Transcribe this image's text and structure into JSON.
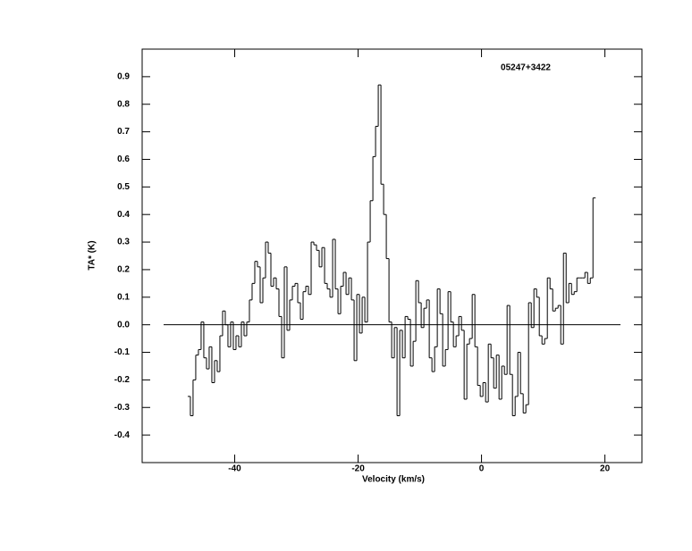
{
  "chart_data": {
    "type": "step",
    "annotation": "05247+3422",
    "xlabel": "Velocity (km/s)",
    "ylabel": "TA* (K)",
    "color": "#000000",
    "xlim": [
      -55,
      26
    ],
    "ylim": [
      -0.5,
      1.0
    ],
    "xticks": [
      -40,
      -20,
      0,
      20
    ],
    "yticks": [
      -0.4,
      -0.3,
      -0.2,
      -0.1,
      {
        "value": 0,
        "label": "0.0"
      },
      0.1,
      0.2,
      0.3,
      0.4,
      0.5,
      0.6,
      0.7,
      0.8,
      0.9
    ],
    "zero_line": true,
    "x": [
      -47.4,
      -46.97,
      -46.53,
      -46.1,
      -45.66,
      -45.23,
      -44.79,
      -44.36,
      -43.92,
      -43.49,
      -43.05,
      -42.62,
      -42.18,
      -41.75,
      -41.31,
      -40.88,
      -40.44,
      -40.01,
      -39.57,
      -39.14,
      -38.7,
      -38.27,
      -37.83,
      -37.4,
      -36.96,
      -36.53,
      -36.09,
      -35.66,
      -35.22,
      -34.79,
      -34.35,
      -33.92,
      -33.48,
      -33.05,
      -32.61,
      -32.18,
      -31.74,
      -31.31,
      -30.87,
      -30.44,
      -30.0,
      -29.57,
      -29.13,
      -28.7,
      -28.26,
      -27.83,
      -27.39,
      -26.96,
      -26.52,
      -26.09,
      -25.65,
      -25.22,
      -24.78,
      -24.35,
      -23.91,
      -23.48,
      -23.04,
      -22.61,
      -22.17,
      -21.74,
      -21.3,
      -20.87,
      -20.43,
      -20.0,
      -19.56,
      -19.13,
      -18.69,
      -18.26,
      -17.82,
      -17.39,
      -16.95,
      -16.52,
      -16.08,
      -15.65,
      -15.21,
      -14.78,
      -14.34,
      -13.91,
      -13.47,
      -13.04,
      -12.6,
      -12.17,
      -11.73,
      -11.3,
      -10.86,
      -10.43,
      -9.99,
      -9.56,
      -9.12,
      -8.69,
      -8.25,
      -7.82,
      -7.38,
      -6.95,
      -6.51,
      -6.08,
      -5.64,
      -5.21,
      -4.77,
      -4.34,
      -3.9,
      -3.47,
      -3.03,
      -2.6,
      -2.16,
      -1.73,
      -1.29,
      -0.86,
      -0.42,
      0.01,
      0.45,
      0.88,
      1.32,
      1.75,
      2.19,
      2.62,
      3.06,
      3.49,
      3.93,
      4.36,
      4.8,
      5.23,
      5.67,
      6.1,
      6.54,
      6.97,
      7.41,
      7.84,
      8.28,
      8.71,
      9.15,
      9.58,
      10.02,
      10.45,
      10.89,
      11.32,
      11.76,
      12.19,
      12.63,
      13.06,
      13.5,
      13.93,
      14.37,
      14.8,
      15.24,
      15.67,
      16.11,
      16.54,
      16.98,
      17.41,
      17.85,
      18.28
    ],
    "values": [
      -0.26,
      -0.33,
      -0.2,
      -0.11,
      -0.09,
      0.01,
      -0.12,
      -0.16,
      -0.08,
      -0.21,
      -0.13,
      -0.17,
      -0.04,
      0.05,
      0.0,
      -0.08,
      0.01,
      -0.09,
      -0.04,
      -0.08,
      0.01,
      -0.04,
      0.01,
      0.09,
      0.15,
      0.23,
      0.21,
      0.08,
      0.17,
      0.3,
      0.26,
      0.14,
      0.17,
      0.13,
      0.03,
      -0.12,
      0.21,
      -0.02,
      0.09,
      0.14,
      0.15,
      0.08,
      0.02,
      0.12,
      0.14,
      0.11,
      0.3,
      0.29,
      0.27,
      0.21,
      0.28,
      0.15,
      0.13,
      0.1,
      0.31,
      0.13,
      0.04,
      0.14,
      0.19,
      0.11,
      0.17,
      0.09,
      -0.13,
      0.11,
      -0.03,
      0.1,
      0.01,
      0.3,
      0.45,
      0.61,
      0.72,
      0.87,
      0.51,
      0.4,
      0.24,
      0.01,
      -0.12,
      -0.01,
      -0.33,
      -0.02,
      -0.12,
      0.03,
      0.02,
      -0.15,
      -0.06,
      0.16,
      0.08,
      -0.01,
      0.06,
      0.09,
      -0.12,
      -0.17,
      -0.08,
      0.13,
      0.04,
      -0.15,
      -0.09,
      0.12,
      0.01,
      -0.08,
      -0.04,
      0.03,
      -0.02,
      -0.27,
      -0.07,
      -0.05,
      0.11,
      -0.08,
      -0.22,
      -0.26,
      -0.21,
      -0.28,
      -0.07,
      -0.12,
      -0.23,
      -0.11,
      -0.27,
      -0.15,
      -0.18,
      0.07,
      -0.18,
      -0.33,
      -0.26,
      -0.1,
      -0.25,
      -0.32,
      -0.29,
      0.08,
      -0.01,
      0.13,
      0.1,
      -0.04,
      -0.07,
      -0.05,
      0.17,
      0.13,
      0.05,
      0.06,
      0.07,
      -0.07,
      0.26,
      0.08,
      0.15,
      0.11,
      0.12,
      0.17,
      0.17,
      0.17,
      0.19,
      0.15,
      0.17,
      0.46
    ]
  }
}
